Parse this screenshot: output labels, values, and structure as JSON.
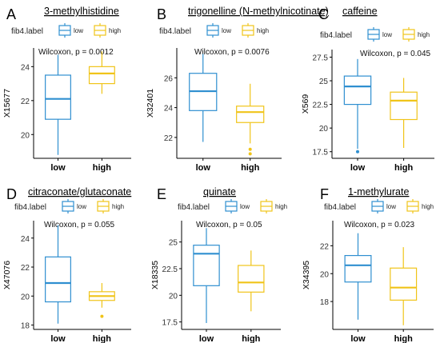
{
  "figure": {
    "legend_title": "fib4.label",
    "colors": {
      "low": "#2f8fd0",
      "high": "#f0c419"
    }
  },
  "chart_data": [
    {
      "type": "box",
      "letter": "A",
      "title": "3-methylhistidine",
      "ylabel": "X15677",
      "annotation": "Wilcoxon, p = 0.0012",
      "categories": [
        "low",
        "high"
      ],
      "ylim": [
        18.6,
        25.1
      ],
      "yticks": [
        20,
        22,
        24
      ],
      "legend": [
        "low",
        "high"
      ],
      "series": [
        {
          "name": "low",
          "whisker_low": 18.8,
          "q1": 20.9,
          "median": 22.1,
          "q3": 23.5,
          "whisker_high": 24.7,
          "outliers": []
        },
        {
          "name": "high",
          "whisker_low": 22.4,
          "q1": 23.0,
          "median": 23.6,
          "q3": 24.0,
          "whisker_high": 24.9,
          "outliers": []
        }
      ]
    },
    {
      "type": "box",
      "letter": "B",
      "title": "trigonelline (N-methylnicotinate)",
      "ylabel": "X32401",
      "annotation": "Wilcoxon, p = 0.0076",
      "categories": [
        "low",
        "high"
      ],
      "ylim": [
        20.6,
        28.0
      ],
      "yticks": [
        22,
        24,
        26
      ],
      "legend": [
        "low",
        "high"
      ],
      "series": [
        {
          "name": "low",
          "whisker_low": 21.7,
          "q1": 23.8,
          "median": 25.1,
          "q3": 26.3,
          "whisker_high": 27.6,
          "outliers": []
        },
        {
          "name": "high",
          "whisker_low": 21.6,
          "q1": 23.0,
          "median": 23.7,
          "q3": 24.1,
          "whisker_high": 25.6,
          "outliers": [
            21.2,
            20.9
          ]
        }
      ]
    },
    {
      "type": "box",
      "letter": "C",
      "title": "caffeine",
      "ylabel": "X569",
      "annotation": "Wilcoxon, p = 0.045",
      "categories": [
        "low",
        "high"
      ],
      "ylim": [
        16.8,
        28.3
      ],
      "yticks": [
        17.5,
        20.0,
        22.5,
        25.0,
        27.5
      ],
      "legend": [
        "low",
        "high"
      ],
      "series": [
        {
          "name": "low",
          "whisker_low": 17.8,
          "q1": 22.5,
          "median": 24.4,
          "q3": 25.5,
          "whisker_high": 27.3,
          "outliers": [
            17.5
          ]
        },
        {
          "name": "high",
          "whisker_low": 17.9,
          "q1": 20.9,
          "median": 22.9,
          "q3": 23.8,
          "whisker_high": 25.3,
          "outliers": []
        }
      ]
    },
    {
      "type": "box",
      "letter": "D",
      "title": "citraconate/glutaconate",
      "ylabel": "X47076",
      "annotation": "Wilcoxon, p = 0.055",
      "categories": [
        "low",
        "high"
      ],
      "ylim": [
        17.7,
        25.2
      ],
      "yticks": [
        18,
        20,
        22,
        24
      ],
      "legend": [
        "low",
        "high"
      ],
      "series": [
        {
          "name": "low",
          "whisker_low": 18.1,
          "q1": 19.6,
          "median": 20.9,
          "q3": 22.7,
          "whisker_high": 24.9,
          "outliers": []
        },
        {
          "name": "high",
          "whisker_low": 19.2,
          "q1": 19.7,
          "median": 20.0,
          "q3": 20.3,
          "whisker_high": 20.9,
          "outliers": [
            18.6
          ]
        }
      ]
    },
    {
      "type": "box",
      "letter": "E",
      "title": "quinate",
      "ylabel": "X18335",
      "annotation": "Wilcoxon, p = 0.05",
      "categories": [
        "low",
        "high"
      ],
      "ylim": [
        16.8,
        27.0
      ],
      "yticks": [
        17.5,
        20.0,
        22.5,
        25.0
      ],
      "legend": [
        "low",
        "high"
      ],
      "series": [
        {
          "name": "low",
          "whisker_low": 17.4,
          "q1": 20.9,
          "median": 23.9,
          "q3": 24.7,
          "whisker_high": 26.3,
          "outliers": []
        },
        {
          "name": "high",
          "whisker_low": 18.5,
          "q1": 20.3,
          "median": 21.2,
          "q3": 22.8,
          "whisker_high": 24.2,
          "outliers": []
        }
      ]
    },
    {
      "type": "box",
      "letter": "F",
      "title": "1-methylurate",
      "ylabel": "X34395",
      "annotation": "Wilcoxon, p = 0.023",
      "categories": [
        "low",
        "high"
      ],
      "ylim": [
        16.0,
        23.8
      ],
      "yticks": [
        18,
        20,
        22
      ],
      "legend": [
        "low",
        "high"
      ],
      "series": [
        {
          "name": "low",
          "whisker_low": 16.7,
          "q1": 19.4,
          "median": 20.6,
          "q3": 21.3,
          "whisker_high": 22.9,
          "outliers": []
        },
        {
          "name": "high",
          "whisker_low": 16.3,
          "q1": 18.1,
          "median": 19.0,
          "q3": 20.4,
          "whisker_high": 21.9,
          "outliers": []
        }
      ]
    }
  ]
}
